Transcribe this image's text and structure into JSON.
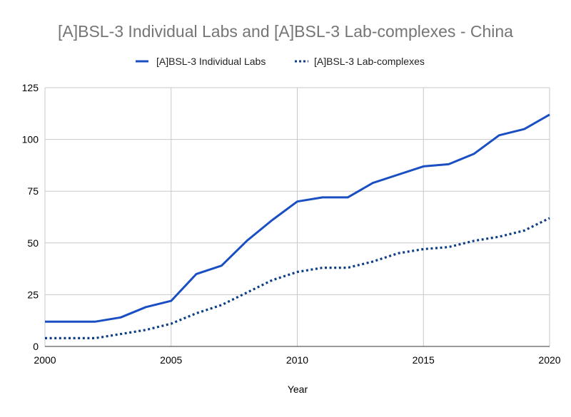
{
  "chart_data": {
    "type": "line",
    "title": "[A]BSL-3 Individual Labs and [A]BSL-3 Lab-complexes - China",
    "xlabel": "Year",
    "ylabel": "",
    "xlim": [
      2000,
      2020
    ],
    "ylim": [
      0,
      125
    ],
    "x_ticks": [
      "2000",
      "2005",
      "2010",
      "2015",
      "2020"
    ],
    "y_ticks": [
      "0",
      "25",
      "50",
      "75",
      "100",
      "125"
    ],
    "legend_position": "top",
    "grid": true,
    "x": [
      2000,
      2001,
      2002,
      2003,
      2004,
      2005,
      2006,
      2007,
      2008,
      2009,
      2010,
      2011,
      2012,
      2013,
      2014,
      2015,
      2016,
      2017,
      2018,
      2019,
      2020
    ],
    "series": [
      {
        "name": "[A]BSL-3 Individual Labs",
        "style": "solid",
        "color": "#1a4fc4",
        "values": [
          12,
          12,
          12,
          14,
          19,
          22,
          35,
          39,
          51,
          61,
          70,
          72,
          72,
          79,
          83,
          87,
          88,
          93,
          102,
          105,
          112
        ]
      },
      {
        "name": "[A]BSL-3 Lab-complexes",
        "style": "dotted",
        "color": "#0d3f86",
        "values": [
          4,
          4,
          4,
          6,
          8,
          11,
          16,
          20,
          26,
          32,
          36,
          38,
          38,
          41,
          45,
          47,
          48,
          51,
          53,
          56,
          62
        ]
      }
    ]
  }
}
